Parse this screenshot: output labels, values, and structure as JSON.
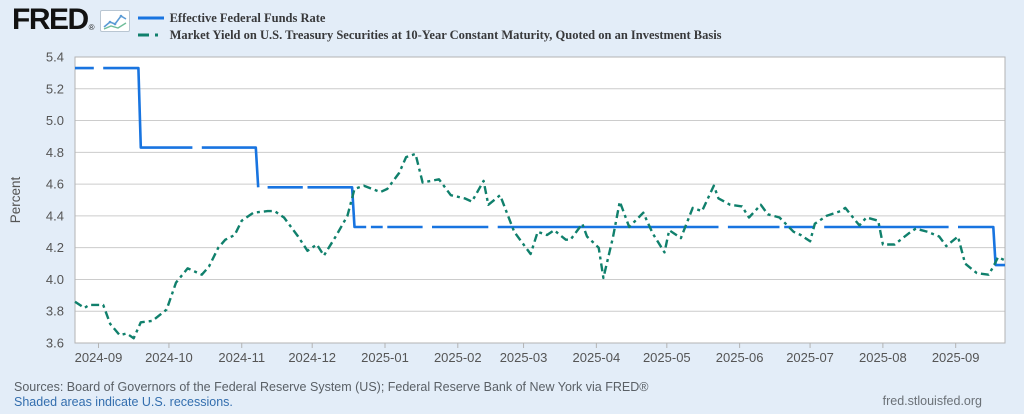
{
  "header": {
    "logo_text": "FRED",
    "logo_mark": "®"
  },
  "footer": {
    "sources": "Sources: Board of Governors of the Federal Reserve System (US); Federal Reserve Bank of New York via FRED®",
    "recessions_note": "Shaded areas indicate U.S. recessions.",
    "site_link": "fred.stlouisfed.org"
  },
  "colors": {
    "background": "#e3edf8",
    "plot_background": "#ffffff",
    "gridline": "#cccccc",
    "plot_border": "#b3b3b3",
    "axis_text": "#555555",
    "legend_text": "#38393b",
    "link_blue": "#336eae",
    "effr_blue": "#1874e0",
    "treasury_teal": "#10806c"
  },
  "chart_data": {
    "type": "line",
    "title": "",
    "xlabel": "",
    "ylabel": "Percent",
    "ylim": [
      3.6,
      5.4
    ],
    "ytick_step": 0.2,
    "grid": "horizontal",
    "legend_position": "top-left",
    "x_range": [
      "2024-08-22",
      "2025-09-22"
    ],
    "x_tick_labels": [
      "2024-09",
      "2024-10",
      "2024-11",
      "2024-12",
      "2025-01",
      "2025-02",
      "2025-03",
      "2025-04",
      "2025-05",
      "2025-06",
      "2025-07",
      "2025-08",
      "2025-09"
    ],
    "series": [
      {
        "name": "Effective Federal Funds Rate",
        "color": "#1874e0",
        "style": "solid",
        "points": [
          [
            "2024-08-22",
            5.33
          ],
          [
            "2024-08-30",
            5.33
          ],
          null,
          [
            "2024-09-03",
            5.33
          ],
          [
            "2024-09-18",
            5.33
          ],
          [
            "2024-09-19",
            4.83
          ],
          [
            "2024-10-11",
            4.83
          ],
          null,
          [
            "2024-10-15",
            4.83
          ],
          [
            "2024-11-07",
            4.83
          ],
          [
            "2024-11-08",
            4.58
          ],
          null,
          [
            "2024-11-12",
            4.58
          ],
          [
            "2024-11-27",
            4.58
          ],
          null,
          [
            "2024-11-29",
            4.58
          ],
          [
            "2024-12-18",
            4.58
          ],
          [
            "2024-12-19",
            4.33
          ],
          [
            "2024-12-24",
            4.33
          ],
          null,
          [
            "2024-12-26",
            4.33
          ],
          [
            "2024-12-31",
            4.33
          ],
          null,
          [
            "2025-01-02",
            4.33
          ],
          [
            "2025-01-17",
            4.33
          ],
          null,
          [
            "2025-01-21",
            4.33
          ],
          [
            "2025-02-14",
            4.33
          ],
          null,
          [
            "2025-02-18",
            4.33
          ],
          [
            "2025-05-23",
            4.33
          ],
          null,
          [
            "2025-05-27",
            4.33
          ],
          [
            "2025-06-18",
            4.33
          ],
          null,
          [
            "2025-06-20",
            4.33
          ],
          [
            "2025-07-03",
            4.33
          ],
          null,
          [
            "2025-07-07",
            4.33
          ],
          [
            "2025-08-29",
            4.33
          ],
          null,
          [
            "2025-09-02",
            4.33
          ],
          [
            "2025-09-17",
            4.33
          ],
          [
            "2025-09-18",
            4.09
          ],
          [
            "2025-09-22",
            4.09
          ]
        ]
      },
      {
        "name": "Market Yield on U.S. Treasury Securities at 10-Year Constant Maturity, Quoted on an Investment Basis",
        "color": "#10806c",
        "style": "dash-dot",
        "points": [
          [
            "2024-08-22",
            3.86
          ],
          [
            "2024-08-26",
            3.82
          ],
          [
            "2024-08-28",
            3.84
          ],
          [
            "2024-09-03",
            3.84
          ],
          [
            "2024-09-06",
            3.72
          ],
          [
            "2024-09-10",
            3.65
          ],
          [
            "2024-09-13",
            3.66
          ],
          [
            "2024-09-16",
            3.63
          ],
          [
            "2024-09-19",
            3.73
          ],
          [
            "2024-09-24",
            3.74
          ],
          [
            "2024-09-30",
            3.81
          ],
          [
            "2024-10-04",
            3.98
          ],
          [
            "2024-10-09",
            4.07
          ],
          [
            "2024-10-15",
            4.03
          ],
          [
            "2024-10-18",
            4.08
          ],
          [
            "2024-10-22",
            4.2
          ],
          [
            "2024-10-25",
            4.25
          ],
          [
            "2024-10-29",
            4.28
          ],
          [
            "2024-11-01",
            4.37
          ],
          [
            "2024-11-06",
            4.42
          ],
          [
            "2024-11-12",
            4.43
          ],
          [
            "2024-11-15",
            4.43
          ],
          [
            "2024-11-19",
            4.39
          ],
          [
            "2024-11-25",
            4.27
          ],
          [
            "2024-11-29",
            4.18
          ],
          [
            "2024-12-03",
            4.22
          ],
          [
            "2024-12-06",
            4.15
          ],
          [
            "2024-12-11",
            4.27
          ],
          [
            "2024-12-16",
            4.4
          ],
          [
            "2024-12-19",
            4.57
          ],
          [
            "2024-12-23",
            4.59
          ],
          [
            "2024-12-30",
            4.55
          ],
          [
            "2025-01-02",
            4.57
          ],
          [
            "2025-01-07",
            4.67
          ],
          [
            "2025-01-10",
            4.77
          ],
          [
            "2025-01-14",
            4.79
          ],
          [
            "2025-01-17",
            4.61
          ],
          [
            "2025-01-24",
            4.63
          ],
          [
            "2025-01-29",
            4.53
          ],
          [
            "2025-02-04",
            4.51
          ],
          [
            "2025-02-07",
            4.49
          ],
          [
            "2025-02-12",
            4.62
          ],
          [
            "2025-02-14",
            4.47
          ],
          [
            "2025-02-19",
            4.53
          ],
          [
            "2025-02-25",
            4.3
          ],
          [
            "2025-02-28",
            4.24
          ],
          [
            "2025-03-04",
            4.16
          ],
          [
            "2025-03-07",
            4.3
          ],
          [
            "2025-03-11",
            4.28
          ],
          [
            "2025-03-14",
            4.31
          ],
          [
            "2025-03-19",
            4.25
          ],
          [
            "2025-03-21",
            4.25
          ],
          [
            "2025-03-26",
            4.35
          ],
          [
            "2025-03-28",
            4.27
          ],
          [
            "2025-04-02",
            4.2
          ],
          [
            "2025-04-04",
            4.01
          ],
          [
            "2025-04-08",
            4.26
          ],
          [
            "2025-04-11",
            4.49
          ],
          [
            "2025-04-15",
            4.33
          ],
          [
            "2025-04-21",
            4.42
          ],
          [
            "2025-04-25",
            4.29
          ],
          [
            "2025-04-30",
            4.17
          ],
          [
            "2025-05-02",
            4.31
          ],
          [
            "2025-05-07",
            4.26
          ],
          [
            "2025-05-12",
            4.45
          ],
          [
            "2025-05-16",
            4.43
          ],
          [
            "2025-05-21",
            4.59
          ],
          [
            "2025-05-23",
            4.51
          ],
          [
            "2025-05-28",
            4.47
          ],
          [
            "2025-06-02",
            4.46
          ],
          [
            "2025-06-05",
            4.39
          ],
          [
            "2025-06-10",
            4.47
          ],
          [
            "2025-06-13",
            4.41
          ],
          [
            "2025-06-18",
            4.39
          ],
          [
            "2025-06-24",
            4.3
          ],
          [
            "2025-06-27",
            4.28
          ],
          [
            "2025-07-01",
            4.24
          ],
          [
            "2025-07-03",
            4.35
          ],
          [
            "2025-07-08",
            4.4
          ],
          [
            "2025-07-14",
            4.43
          ],
          [
            "2025-07-16",
            4.45
          ],
          [
            "2025-07-22",
            4.34
          ],
          [
            "2025-07-25",
            4.39
          ],
          [
            "2025-07-30",
            4.37
          ],
          [
            "2025-08-01",
            4.22
          ],
          [
            "2025-08-06",
            4.22
          ],
          [
            "2025-08-12",
            4.29
          ],
          [
            "2025-08-15",
            4.32
          ],
          [
            "2025-08-20",
            4.3
          ],
          [
            "2025-08-25",
            4.27
          ],
          [
            "2025-08-28",
            4.21
          ],
          [
            "2025-09-02",
            4.27
          ],
          [
            "2025-09-05",
            4.1
          ],
          [
            "2025-09-10",
            4.04
          ],
          [
            "2025-09-15",
            4.03
          ],
          [
            "2025-09-17",
            4.08
          ],
          [
            "2025-09-19",
            4.14
          ],
          [
            "2025-09-22",
            4.12
          ]
        ]
      }
    ]
  }
}
